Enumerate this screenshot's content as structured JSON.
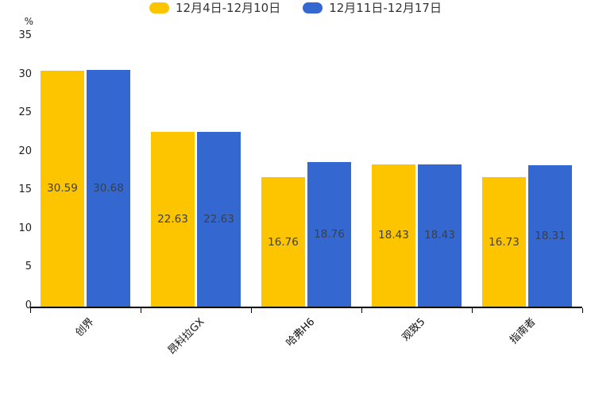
{
  "chart_data": {
    "type": "bar",
    "title": "",
    "categories": [
      "创界",
      "昂科拉GX",
      "哈弗H6",
      "观致5",
      "指南者"
    ],
    "series": [
      {
        "name": "12月4日-12月10日",
        "color": "#FDC500",
        "values": [
          30.59,
          22.63,
          16.76,
          18.43,
          16.73
        ]
      },
      {
        "name": "12月11日-12月17日",
        "color": "#3467D0",
        "values": [
          30.68,
          22.63,
          18.76,
          18.43,
          18.31
        ]
      }
    ],
    "xlabel": "",
    "ylabel": "%",
    "ylim": [
      0,
      35
    ],
    "yticks": [
      0,
      5,
      10,
      15,
      20,
      25,
      30,
      35
    ],
    "grid": false,
    "legend_position": "top",
    "value_labels": true,
    "value_label_color": "#3b4045",
    "axis_color": "#000000",
    "x_label_rotation_deg": 45
  }
}
